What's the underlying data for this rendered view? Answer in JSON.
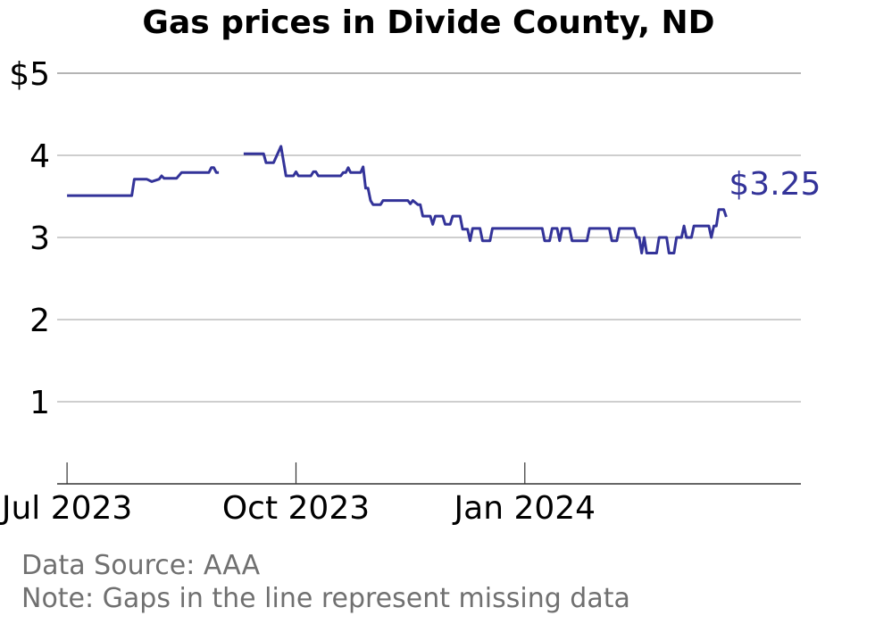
{
  "chart_data": {
    "type": "line",
    "title": "Gas prices in Divide County, ND",
    "xlabel": "",
    "ylabel": "",
    "ylim": [
      0,
      5
    ],
    "xlim": [
      "2023-06-27",
      "2024-04-21"
    ],
    "grid": "horizontal",
    "y_ticks": [
      1,
      2,
      3,
      4,
      5
    ],
    "y_tick_labels": [
      "1",
      "2",
      "3",
      "4",
      "$5"
    ],
    "x_ticks": [
      "2023-07-01",
      "2023-10-01",
      "2024-01-01"
    ],
    "x_tick_labels": [
      "Jul 2023",
      "Oct 2023",
      "Jan 2024"
    ],
    "series": [
      {
        "color": "#333399",
        "segments": [
          [
            [
              "2023-07-01",
              3.51
            ],
            [
              "2023-07-27",
              3.51
            ],
            [
              "2023-07-28",
              3.71
            ],
            [
              "2023-08-02",
              3.71
            ],
            [
              "2023-08-04",
              3.68
            ],
            [
              "2023-08-07",
              3.71
            ],
            [
              "2023-08-08",
              3.75
            ],
            [
              "2023-08-09",
              3.72
            ],
            [
              "2023-08-14",
              3.72
            ],
            [
              "2023-08-16",
              3.79
            ],
            [
              "2023-08-27",
              3.79
            ],
            [
              "2023-08-28",
              3.85
            ],
            [
              "2023-08-29",
              3.85
            ],
            [
              "2023-08-30",
              3.79
            ],
            [
              "2023-08-31",
              3.79
            ]
          ],
          [
            [
              "2023-09-10",
              4.02
            ],
            [
              "2023-09-18",
              4.02
            ],
            [
              "2023-09-19",
              3.91
            ],
            [
              "2023-09-22",
              3.91
            ],
            [
              "2023-09-25",
              4.11
            ],
            [
              "2023-09-27",
              3.75
            ],
            [
              "2023-09-30",
              3.75
            ],
            [
              "2023-10-01",
              3.8
            ],
            [
              "2023-10-02",
              3.75
            ],
            [
              "2023-10-07",
              3.75
            ],
            [
              "2023-10-08",
              3.8
            ],
            [
              "2023-10-09",
              3.8
            ],
            [
              "2023-10-10",
              3.75
            ],
            [
              "2023-10-19",
              3.75
            ],
            [
              "2023-10-20",
              3.79
            ],
            [
              "2023-10-21",
              3.79
            ],
            [
              "2023-10-22",
              3.85
            ],
            [
              "2023-10-23",
              3.79
            ],
            [
              "2023-10-27",
              3.79
            ],
            [
              "2023-10-28",
              3.86
            ],
            [
              "2023-10-29",
              3.6
            ],
            [
              "2023-10-30",
              3.6
            ],
            [
              "2023-10-31",
              3.45
            ],
            [
              "2023-11-01",
              3.4
            ],
            [
              "2023-11-04",
              3.4
            ],
            [
              "2023-11-05",
              3.45
            ],
            [
              "2023-11-15",
              3.45
            ],
            [
              "2023-11-16",
              3.41
            ],
            [
              "2023-11-17",
              3.45
            ],
            [
              "2023-11-19",
              3.4
            ],
            [
              "2023-11-20",
              3.4
            ],
            [
              "2023-11-21",
              3.26
            ],
            [
              "2023-11-24",
              3.26
            ],
            [
              "2023-11-25",
              3.16
            ],
            [
              "2023-11-26",
              3.26
            ],
            [
              "2023-11-29",
              3.26
            ],
            [
              "2023-11-30",
              3.16
            ],
            [
              "2023-12-02",
              3.16
            ],
            [
              "2023-12-03",
              3.26
            ],
            [
              "2023-12-06",
              3.26
            ],
            [
              "2023-12-07",
              3.1
            ],
            [
              "2023-12-09",
              3.1
            ],
            [
              "2023-12-10",
              2.96
            ],
            [
              "2023-12-11",
              3.11
            ],
            [
              "2023-12-14",
              3.11
            ],
            [
              "2023-12-15",
              2.96
            ],
            [
              "2023-12-18",
              2.96
            ],
            [
              "2023-12-19",
              3.11
            ],
            [
              "2024-01-08",
              3.11
            ],
            [
              "2024-01-09",
              2.96
            ],
            [
              "2024-01-11",
              2.96
            ],
            [
              "2024-01-12",
              3.11
            ],
            [
              "2024-01-14",
              3.11
            ],
            [
              "2024-01-15",
              2.96
            ],
            [
              "2024-01-16",
              3.11
            ],
            [
              "2024-01-19",
              3.11
            ],
            [
              "2024-01-20",
              2.96
            ],
            [
              "2024-01-26",
              2.96
            ],
            [
              "2024-01-27",
              3.11
            ],
            [
              "2024-02-04",
              3.11
            ],
            [
              "2024-02-05",
              2.96
            ],
            [
              "2024-02-07",
              2.96
            ],
            [
              "2024-02-08",
              3.11
            ],
            [
              "2024-02-14",
              3.11
            ],
            [
              "2024-02-15",
              3.0
            ],
            [
              "2024-02-16",
              3.0
            ],
            [
              "2024-02-17",
              2.81
            ],
            [
              "2024-02-18",
              3.0
            ],
            [
              "2024-02-19",
              2.81
            ],
            [
              "2024-02-23",
              2.81
            ],
            [
              "2024-02-24",
              3.0
            ],
            [
              "2024-02-27",
              3.0
            ],
            [
              "2024-02-28",
              2.81
            ],
            [
              "2024-03-01",
              2.81
            ],
            [
              "2024-03-02",
              3.0
            ],
            [
              "2024-03-04",
              3.0
            ],
            [
              "2024-03-05",
              3.14
            ],
            [
              "2024-03-06",
              3.0
            ],
            [
              "2024-03-08",
              3.0
            ],
            [
              "2024-03-09",
              3.14
            ],
            [
              "2024-03-15",
              3.14
            ],
            [
              "2024-03-16",
              3.0
            ],
            [
              "2024-03-17",
              3.14
            ],
            [
              "2024-03-18",
              3.14
            ],
            [
              "2024-03-19",
              3.34
            ],
            [
              "2024-03-21",
              3.34
            ],
            [
              "2024-03-22",
              3.25
            ]
          ]
        ]
      }
    ],
    "end_label": "$3.25",
    "annotations": {
      "source": "Data Source: AAA",
      "note": "Note: Gaps in the line represent missing data"
    }
  }
}
